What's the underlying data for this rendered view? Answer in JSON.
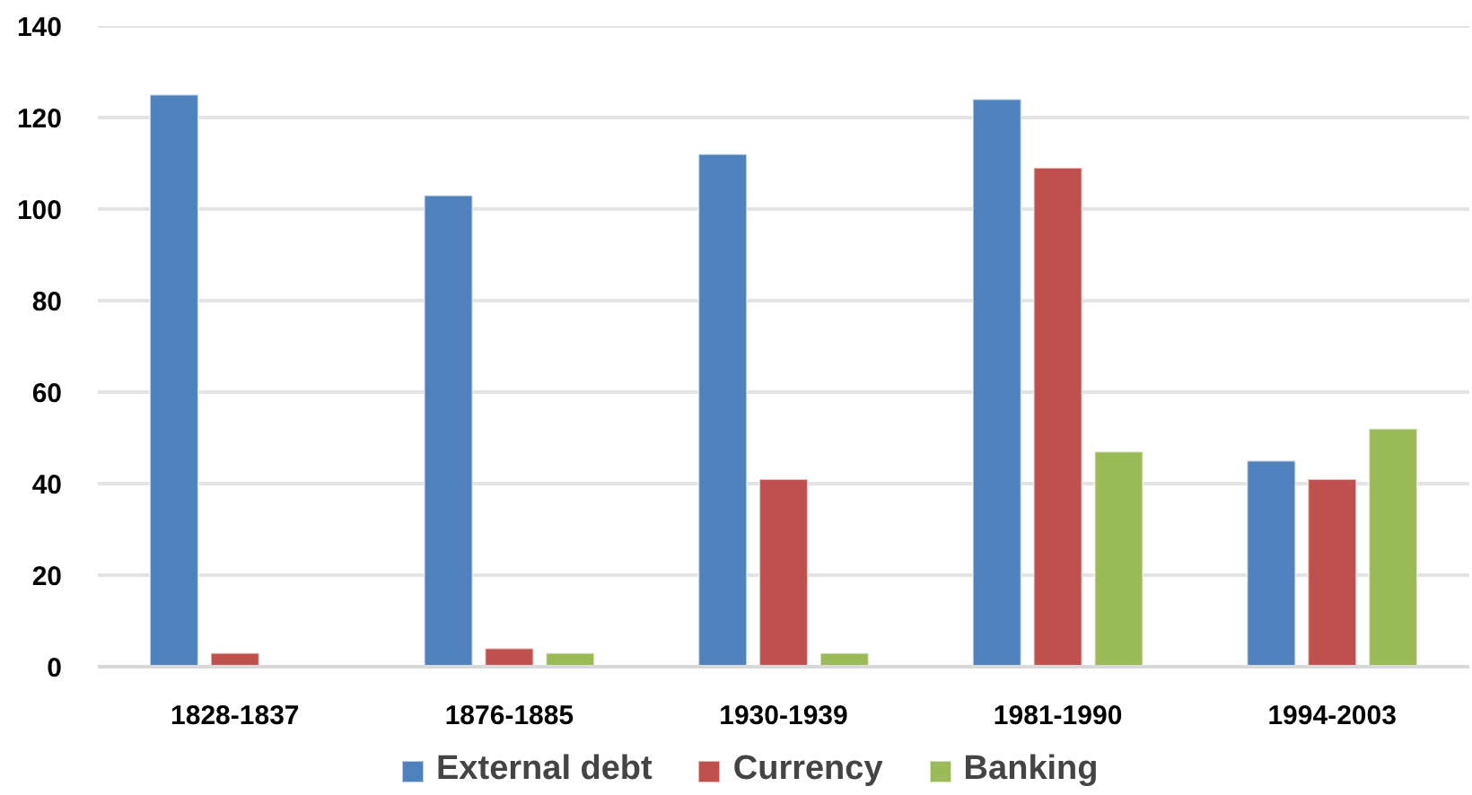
{
  "chart_data": {
    "type": "bar",
    "categories": [
      "1828-1837",
      "1876-1885",
      "1930-1939",
      "1981-1990",
      "1994-2003"
    ],
    "series": [
      {
        "name": "External debt",
        "color": "#4f81bd",
        "values": [
          125,
          103,
          112,
          124,
          45
        ]
      },
      {
        "name": "Currency",
        "color": "#c0504d",
        "values": [
          3,
          4,
          41,
          109,
          41
        ]
      },
      {
        "name": "Banking",
        "color": "#9bbb59",
        "values": [
          null,
          3,
          3,
          47,
          52
        ]
      }
    ],
    "ylim": [
      0,
      140
    ],
    "yticks": [
      0,
      20,
      40,
      60,
      80,
      100,
      120,
      140
    ],
    "grid": "y",
    "legend": "bottom"
  }
}
